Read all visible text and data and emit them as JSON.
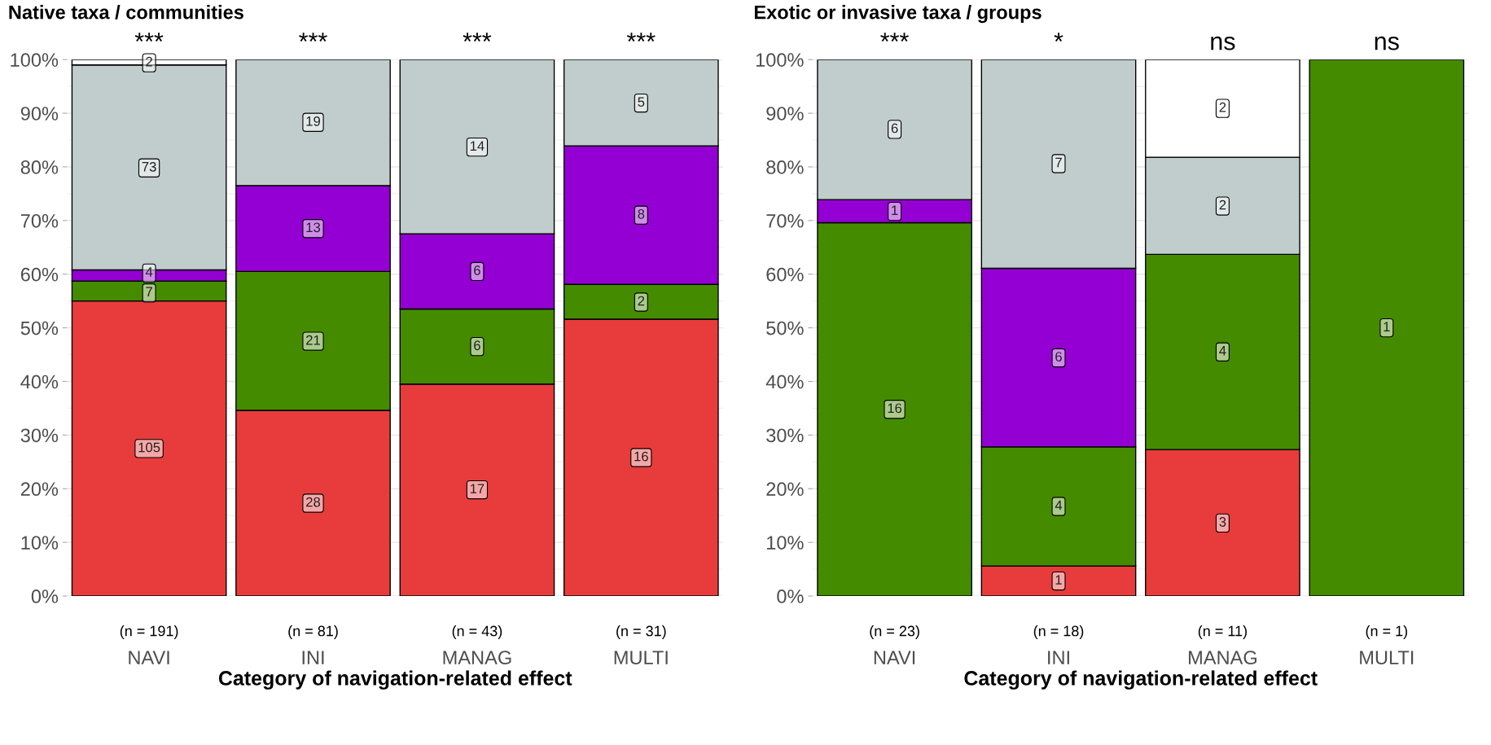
{
  "chart_data": [
    {
      "type": "bar",
      "stacked": true,
      "title": "Native taxa / communities",
      "xlabel": "Category of navigation-related effect",
      "categories": [
        "NAVI",
        "INI",
        "MANAG",
        "MULTI"
      ],
      "series": [
        {
          "color": "#e83c3c",
          "values": [
            55.0,
            34.6,
            39.5,
            51.6
          ]
        },
        {
          "color": "#458b00",
          "values": [
            3.7,
            25.9,
            14.0,
            6.5
          ]
        },
        {
          "color": "#9400d3",
          "values": [
            2.1,
            16.0,
            14.0,
            25.8
          ]
        },
        {
          "color": "#c1cdcd",
          "values": [
            38.2,
            23.5,
            32.5,
            16.1
          ]
        },
        {
          "color": "#ffffff",
          "values": [
            1.0,
            null,
            null,
            null
          ]
        }
      ],
      "ylim": [
        0,
        100
      ],
      "yticks": [
        {
          "value": 0,
          "label": "0%"
        },
        {
          "value": 10,
          "label": "10%"
        },
        {
          "value": 20,
          "label": "20%"
        },
        {
          "value": 30,
          "label": "30%"
        },
        {
          "value": 40,
          "label": "40%"
        },
        {
          "value": 50,
          "label": "50%"
        },
        {
          "value": 60,
          "label": "60%"
        },
        {
          "value": 70,
          "label": "70%"
        },
        {
          "value": 80,
          "label": "80%"
        },
        {
          "value": 90,
          "label": "90%"
        },
        {
          "value": 100,
          "label": "100%"
        }
      ],
      "grid": "y",
      "annotations": [
        {
          "text": "***",
          "x": "NAVI",
          "y": 100
        },
        {
          "text": "***",
          "x": "INI",
          "y": 100
        },
        {
          "text": "***",
          "x": "MANAG",
          "y": 100
        },
        {
          "text": "***",
          "x": "MULTI",
          "y": 100
        },
        {
          "text": "(n = 191)",
          "x": "NAVI",
          "y": 0
        },
        {
          "text": "(n = 81)",
          "x": "INI",
          "y": 0
        },
        {
          "text": "(n = 43)",
          "x": "MANAG",
          "y": 0
        },
        {
          "text": "(n = 31)",
          "x": "MULTI",
          "y": 0
        },
        {
          "text": "105",
          "x": "NAVI",
          "y": 27.5
        },
        {
          "text": "7",
          "x": "NAVI",
          "y": 56.5
        },
        {
          "text": "4",
          "x": "NAVI",
          "y": 60.2
        },
        {
          "text": "73",
          "x": "NAVI",
          "y": 79.8
        },
        {
          "text": "2",
          "x": "NAVI",
          "y": 99.4
        },
        {
          "text": "28",
          "x": "INI",
          "y": 17.3
        },
        {
          "text": "21",
          "x": "INI",
          "y": 47.5
        },
        {
          "text": "13",
          "x": "INI",
          "y": 68.5
        },
        {
          "text": "19",
          "x": "INI",
          "y": 88.3
        },
        {
          "text": "17",
          "x": "MANAG",
          "y": 19.8
        },
        {
          "text": "6",
          "x": "MANAG",
          "y": 46.5
        },
        {
          "text": "6",
          "x": "MANAG",
          "y": 60.5
        },
        {
          "text": "14",
          "x": "MANAG",
          "y": 83.7
        },
        {
          "text": "16",
          "x": "MULTI",
          "y": 25.8
        },
        {
          "text": "2",
          "x": "MULTI",
          "y": 54.8
        },
        {
          "text": "8",
          "x": "MULTI",
          "y": 71.0
        },
        {
          "text": "5",
          "x": "MULTI",
          "y": 91.9
        }
      ]
    },
    {
      "type": "bar",
      "stacked": true,
      "title": "Exotic or invasive taxa / groups",
      "xlabel": "Category of navigation-related effect",
      "categories": [
        "NAVI",
        "INI",
        "MANAG",
        "MULTI"
      ],
      "series": [
        {
          "color": "#e83c3c",
          "values": [
            null,
            5.6,
            27.3,
            null
          ]
        },
        {
          "color": "#458b00",
          "values": [
            69.6,
            22.2,
            36.4,
            100
          ]
        },
        {
          "color": "#9400d3",
          "values": [
            4.3,
            33.3,
            null,
            null
          ]
        },
        {
          "color": "#c1cdcd",
          "values": [
            26.1,
            38.9,
            18.1,
            null
          ]
        },
        {
          "color": "#ffffff",
          "values": [
            null,
            null,
            18.2,
            null
          ]
        }
      ],
      "ylim": [
        0,
        100
      ],
      "yticks": [
        {
          "value": 0,
          "label": "0%"
        },
        {
          "value": 10,
          "label": "10%"
        },
        {
          "value": 20,
          "label": "20%"
        },
        {
          "value": 30,
          "label": "30%"
        },
        {
          "value": 40,
          "label": "40%"
        },
        {
          "value": 50,
          "label": "50%"
        },
        {
          "value": 60,
          "label": "60%"
        },
        {
          "value": 70,
          "label": "70%"
        },
        {
          "value": 80,
          "label": "80%"
        },
        {
          "value": 90,
          "label": "90%"
        },
        {
          "value": 100,
          "label": "100%"
        }
      ],
      "grid": "y",
      "annotations": [
        {
          "text": "***",
          "x": "NAVI",
          "y": 100
        },
        {
          "text": "*",
          "x": "INI",
          "y": 100
        },
        {
          "text": "ns",
          "x": "MANAG",
          "y": 100
        },
        {
          "text": "ns",
          "x": "MULTI",
          "y": 100
        },
        {
          "text": "(n = 23)",
          "x": "NAVI",
          "y": 0
        },
        {
          "text": "(n = 18)",
          "x": "INI",
          "y": 0
        },
        {
          "text": "(n = 11)",
          "x": "MANAG",
          "y": 0
        },
        {
          "text": "(n = 1)",
          "x": "MULTI",
          "y": 0
        },
        {
          "text": "16",
          "x": "NAVI",
          "y": 34.8
        },
        {
          "text": "1",
          "x": "NAVI",
          "y": 71.7
        },
        {
          "text": "6",
          "x": "NAVI",
          "y": 87.0
        },
        {
          "text": "1",
          "x": "INI",
          "y": 2.8
        },
        {
          "text": "4",
          "x": "INI",
          "y": 16.7
        },
        {
          "text": "6",
          "x": "INI",
          "y": 44.4
        },
        {
          "text": "7",
          "x": "INI",
          "y": 80.6
        },
        {
          "text": "3",
          "x": "MANAG",
          "y": 13.6
        },
        {
          "text": "4",
          "x": "MANAG",
          "y": 45.5
        },
        {
          "text": "2",
          "x": "MANAG",
          "y": 72.7
        },
        {
          "text": "2",
          "x": "MANAG",
          "y": 90.9
        },
        {
          "text": "1",
          "x": "MULTI",
          "y": 50.0
        }
      ]
    }
  ]
}
